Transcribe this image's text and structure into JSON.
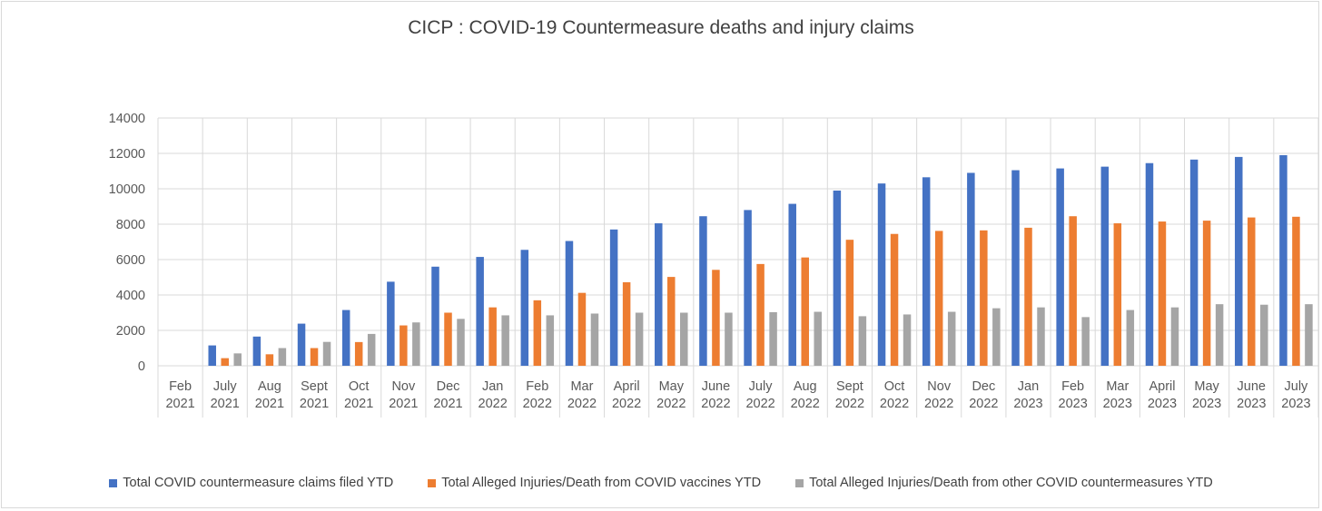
{
  "chart_data": {
    "type": "bar",
    "title": "CICP : COVID-19 Countermeasure deaths and injury claims",
    "xlabel": "",
    "ylabel": "",
    "ylim": [
      0,
      14000
    ],
    "yticks": [
      "0",
      "2000",
      "4000",
      "6000",
      "8000",
      "10000",
      "12000",
      "14000"
    ],
    "grid": true,
    "legend_position": "bottom",
    "categories": [
      [
        "Feb",
        "2021"
      ],
      [
        "July",
        "2021"
      ],
      [
        "Aug",
        "2021"
      ],
      [
        "Sept",
        "2021"
      ],
      [
        "Oct",
        "2021"
      ],
      [
        "Nov",
        "2021"
      ],
      [
        "Dec",
        "2021"
      ],
      [
        "Jan",
        "2022"
      ],
      [
        "Feb",
        "2022"
      ],
      [
        "Mar",
        "2022"
      ],
      [
        "April",
        "2022"
      ],
      [
        "May",
        "2022"
      ],
      [
        "June",
        "2022"
      ],
      [
        "July",
        "2022"
      ],
      [
        "Aug",
        "2022"
      ],
      [
        "Sept",
        "2022"
      ],
      [
        "Oct",
        "2022"
      ],
      [
        "Nov",
        "2022"
      ],
      [
        "Dec",
        "2022"
      ],
      [
        "Jan",
        "2023"
      ],
      [
        "Feb",
        "2023"
      ],
      [
        "Mar",
        "2023"
      ],
      [
        "April",
        "2023"
      ],
      [
        "May",
        "2023"
      ],
      [
        "June",
        "2023"
      ],
      [
        "July",
        "2023"
      ]
    ],
    "series": [
      {
        "name": "Total COVID countermeasure claims filed YTD",
        "color": "#4472c4",
        "values": [
          0,
          1150,
          1650,
          2380,
          3150,
          4750,
          5600,
          6150,
          6550,
          7050,
          7700,
          8050,
          8450,
          8800,
          9150,
          9900,
          10300,
          10650,
          10900,
          11050,
          11150,
          11250,
          11450,
          11650,
          11800,
          11900
        ]
      },
      {
        "name": "Total Alleged Injuries/Death from COVID vaccines YTD",
        "color": "#ed7d31",
        "values": [
          0,
          430,
          650,
          1000,
          1340,
          2280,
          3000,
          3300,
          3700,
          4120,
          4720,
          5020,
          5420,
          5750,
          6120,
          7120,
          7450,
          7620,
          7650,
          7800,
          8450,
          8050,
          8150,
          8200,
          8380,
          8420
        ]
      },
      {
        "name": "Total Alleged Injuries/Death from other COVID countermeasures YTD",
        "color": "#a5a5a5",
        "values": [
          0,
          700,
          1000,
          1350,
          1800,
          2450,
          2650,
          2850,
          2850,
          2950,
          3000,
          3000,
          3000,
          3030,
          3050,
          2800,
          2900,
          3050,
          3250,
          3300,
          2750,
          3150,
          3300,
          3480,
          3450,
          3480
        ]
      }
    ]
  }
}
